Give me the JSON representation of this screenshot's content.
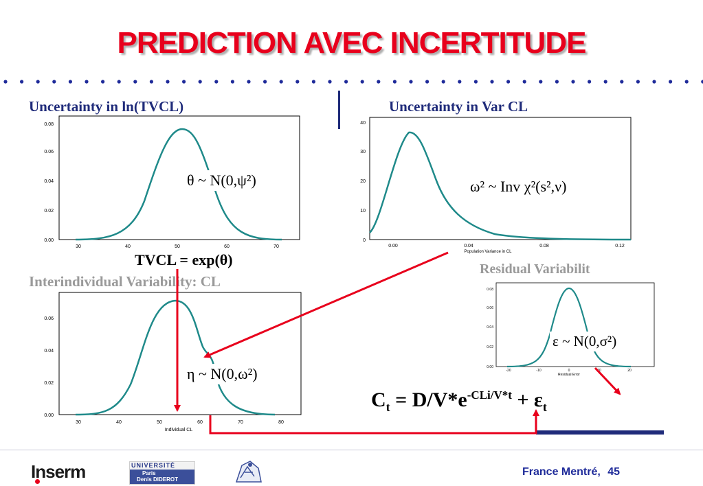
{
  "slide": {
    "title": "PREDICTION AVEC INCERTITUDE",
    "footer_credit": "France Mentré,",
    "page_number": "45"
  },
  "panels": {
    "tl": {
      "heading": "Uncertainty in ln(TVCL)",
      "formula": "θ ~ N(0,ψ²)",
      "y_ticks": [
        "0.00",
        "0.02",
        "0.04",
        "0.06",
        "0.08"
      ],
      "x_ticks": [
        "30",
        "40",
        "50",
        "60",
        "70"
      ]
    },
    "tr": {
      "heading": "Uncertainty in Var CL",
      "formula": "ω² ~ Inv χ²(s²,ν)",
      "y_ticks": [
        "0",
        "10",
        "20",
        "30",
        "40"
      ],
      "x_ticks": [
        "0.00",
        "0.04",
        "0.08",
        "0.12"
      ],
      "x_label": "Population Variance in CL"
    },
    "equation_tvcl": "TVCL = exp(θ)",
    "bl": {
      "heading": "Interindividual Variability: CL",
      "formula": "η ~ N(0,ω²)",
      "y_ticks": [
        "0.00",
        "0.02",
        "0.04",
        "0.06"
      ],
      "x_ticks": [
        "30",
        "40",
        "50",
        "60",
        "70",
        "80"
      ],
      "x_label": "Individual CL"
    },
    "br": {
      "heading": "Residual Variabilit",
      "formula": "ε ~ N(0,σ²)",
      "y_ticks": [
        "0.00",
        "0.02",
        "0.04",
        "0.06",
        "0.08"
      ],
      "x_ticks": [
        "-20",
        "-10",
        "0",
        "10",
        "20"
      ],
      "x_label": "Residual Error"
    },
    "main_equation": {
      "lhs": "C",
      "lhs_sub": "t",
      "mid": " = D/V*e",
      "exp": "-CLi/V*t",
      "plus": " + ε",
      "eps_sub": "t"
    }
  },
  "logos": {
    "inserm": "Inserm",
    "univ_top": "UNIVERSITÉ",
    "univ_line1": "Paris",
    "univ_line2": "Denis DIDEROT"
  },
  "colors": {
    "title": "#e8001c",
    "accent_blue": "#1f2b7a",
    "curve": "#1f8a8a",
    "arrow": "#e8001c"
  }
}
